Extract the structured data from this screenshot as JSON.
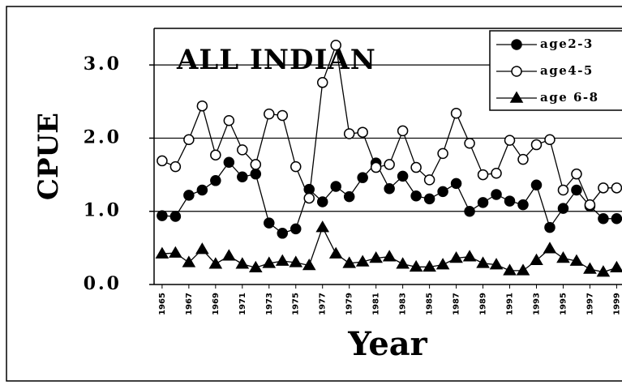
{
  "chart_data": {
    "type": "line",
    "title": "ALL INDIAN",
    "x_label": "Year",
    "y_label": "CPUE",
    "x": [
      1965,
      1966,
      1967,
      1968,
      1969,
      1970,
      1971,
      1972,
      1973,
      1974,
      1975,
      1976,
      1977,
      1978,
      1979,
      1980,
      1981,
      1982,
      1983,
      1984,
      1985,
      1986,
      1987,
      1988,
      1989,
      1990,
      1991,
      1992,
      1993,
      1994,
      1995,
      1996,
      1997,
      1998,
      1999
    ],
    "series": [
      {
        "name": "age2-3",
        "color": "#000000",
        "marker": "filled-circle",
        "values": [
          0.94,
          0.93,
          1.22,
          1.29,
          1.42,
          1.67,
          1.47,
          1.51,
          0.84,
          0.7,
          0.76,
          1.3,
          1.13,
          1.34,
          1.2,
          1.46,
          1.66,
          1.31,
          1.48,
          1.21,
          1.17,
          1.27,
          1.38,
          1.0,
          1.12,
          1.23,
          1.14,
          1.09,
          1.36,
          0.78,
          1.04,
          1.29,
          1.07,
          0.9,
          0.9
        ]
      },
      {
        "name": "age4-5",
        "color": "#000000",
        "marker": "open-circle",
        "values": [
          1.69,
          1.61,
          1.98,
          2.44,
          1.77,
          2.24,
          1.84,
          1.64,
          2.33,
          2.31,
          1.61,
          1.18,
          2.76,
          3.27,
          2.06,
          2.08,
          1.6,
          1.64,
          2.1,
          1.6,
          1.43,
          1.79,
          2.34,
          1.93,
          1.5,
          1.52,
          1.97,
          1.71,
          1.91,
          1.98,
          1.29,
          1.51,
          1.09,
          1.32,
          1.32
        ]
      },
      {
        "name": "age 6-8",
        "color": "#000000",
        "marker": "filled-triangle",
        "values": [
          0.42,
          0.43,
          0.3,
          0.48,
          0.28,
          0.39,
          0.28,
          0.23,
          0.29,
          0.32,
          0.3,
          0.26,
          0.78,
          0.42,
          0.29,
          0.31,
          0.36,
          0.38,
          0.28,
          0.24,
          0.24,
          0.27,
          0.36,
          0.38,
          0.29,
          0.27,
          0.19,
          0.19,
          0.33,
          0.49,
          0.36,
          0.32,
          0.21,
          0.17,
          0.23
        ]
      }
    ],
    "xlim": [
      1964.4,
      1999.4
    ],
    "xticks": [
      1965,
      1967,
      1969,
      1971,
      1973,
      1975,
      1977,
      1979,
      1981,
      1983,
      1985,
      1987,
      1989,
      1991,
      1993,
      1995,
      1997,
      1999
    ],
    "ylim": [
      0,
      3.5
    ],
    "yticks": [
      {
        "value": 0,
        "label": "0.0"
      },
      {
        "value": 1,
        "label": "1.0"
      },
      {
        "value": 2,
        "label": "2.0"
      },
      {
        "value": 3,
        "label": "3.0"
      }
    ],
    "grid": true,
    "legend_position": "upper-right"
  }
}
